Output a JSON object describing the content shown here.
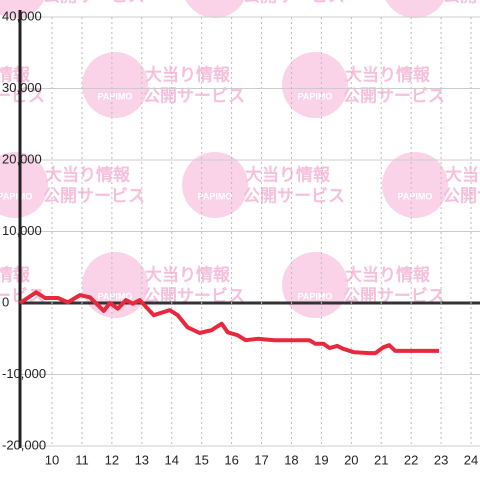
{
  "chart_data": {
    "type": "line",
    "watermark": {
      "brand": "PAPIMO",
      "line1": "大当り情報",
      "line2": "公開サービス"
    },
    "xlim": [
      8.93,
      24.3
    ],
    "xticks": [
      10,
      11,
      12,
      13,
      14,
      15,
      16,
      17,
      18,
      19,
      20,
      21,
      22,
      23,
      24
    ],
    "ylim": [
      -20000,
      40000
    ],
    "yticks": [
      {
        "value": -20000,
        "label": "-20,000"
      },
      {
        "value": -10000,
        "label": "-10,000"
      },
      0,
      {
        "value": 10000,
        "label": "10,000"
      },
      {
        "value": 20000,
        "label": "20,000"
      },
      {
        "value": 30000,
        "label": "30,000"
      },
      {
        "value": 40000,
        "label": "40,000"
      }
    ],
    "grid": true,
    "series": [
      {
        "color": "#e8283c",
        "x": [
          8.93,
          9.47,
          9.77,
          10.2,
          10.53,
          10.93,
          11.27,
          11.73,
          11.93,
          12.2,
          12.47,
          12.7,
          12.93,
          13.4,
          13.93,
          14.2,
          14.53,
          14.93,
          15.33,
          15.67,
          15.87,
          16.2,
          16.47,
          16.87,
          17.43,
          18.6,
          18.8,
          19.07,
          19.27,
          19.53,
          19.73,
          20.1,
          20.6,
          20.8,
          21.07,
          21.27,
          21.47,
          21.93,
          22.93
        ],
        "values": [
          0,
          1500,
          700,
          700,
          100,
          1100,
          800,
          -1100,
          0,
          -800,
          400,
          -100,
          400,
          -1700,
          -1000,
          -1700,
          -3400,
          -4200,
          -3800,
          -2900,
          -4100,
          -4500,
          -5200,
          -5000,
          -5200,
          -5200,
          -5700,
          -5700,
          -6300,
          -6000,
          -6400,
          -6900,
          -7000,
          -7000,
          -6200,
          -5900,
          -6700,
          -6700,
          -6700
        ]
      }
    ]
  }
}
